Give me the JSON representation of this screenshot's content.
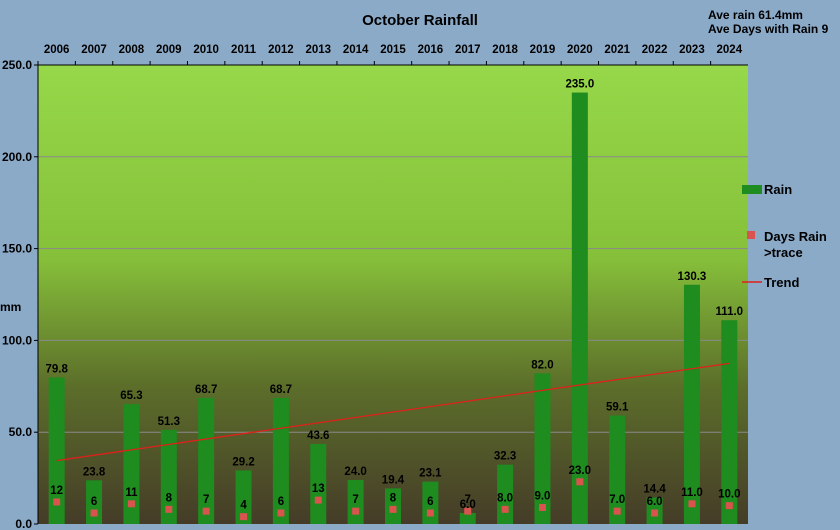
{
  "chart_data": {
    "type": "bar",
    "title": "October Rainfall",
    "annotations": [
      "Ave rain 61.4mm",
      "Ave Days with Rain 9"
    ],
    "ylabel": "mm",
    "xlabel": "",
    "categories": [
      "2006",
      "2007",
      "2008",
      "2009",
      "2010",
      "2011",
      "2012",
      "2013",
      "2014",
      "2015",
      "2016",
      "2017",
      "2018",
      "2019",
      "2020",
      "2021",
      "2022",
      "2023",
      "2024"
    ],
    "ylim": [
      0,
      250
    ],
    "yticks": [
      "0.0",
      "50.0",
      "100.0",
      "150.0",
      "200.0",
      "250.0"
    ],
    "x_axis_position": "top",
    "grid": true,
    "legend_position": "right",
    "series": [
      {
        "name": "Rain",
        "kind": "bar",
        "color": "#1e8c1e",
        "values": [
          79.8,
          23.8,
          65.3,
          51.3,
          68.7,
          29.2,
          68.7,
          43.6,
          24.0,
          19.4,
          23.1,
          6.0,
          32.3,
          82.0,
          235.0,
          59.1,
          14.4,
          130.3,
          111.0
        ],
        "labels": [
          "79.8",
          "23.8",
          "65.3",
          "51.3",
          "68.7",
          "29.2",
          "68.7",
          "43.6",
          "24.0",
          "19.4",
          "23.1",
          "6.0",
          "32.3",
          "82.0",
          "235.0",
          "59.1",
          "14.4",
          "130.3",
          "111.0"
        ]
      },
      {
        "name": "Days Rain >trace",
        "kind": "marker",
        "color": "#d9534f",
        "values": [
          12,
          6,
          11,
          8,
          7,
          4,
          6,
          13,
          7,
          8,
          6,
          7,
          8,
          9,
          23,
          7,
          6,
          11,
          10
        ],
        "labels": [
          "12",
          "6",
          "11",
          "8",
          "7",
          "4",
          "6",
          "13",
          "7",
          "8",
          "6",
          "7",
          "8.0",
          "9.0",
          "23.0",
          "7.0",
          "6.0",
          "11.0",
          "10.0"
        ]
      },
      {
        "name": "Trend",
        "kind": "line",
        "color": "#e0201a",
        "start": 34.5,
        "end": 87.5
      }
    ]
  }
}
